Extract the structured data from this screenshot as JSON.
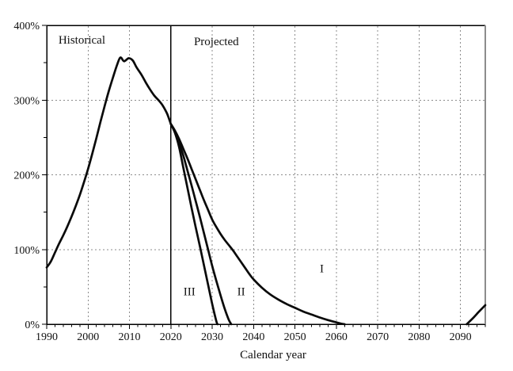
{
  "chart_data": {
    "type": "line",
    "title": "",
    "xlabel": "Calendar year",
    "ylabel": "",
    "y_tick_suffix": "%",
    "xlim": [
      1990,
      2096
    ],
    "ylim": [
      0,
      400
    ],
    "x_major_ticks": [
      1990,
      2000,
      2010,
      2020,
      2030,
      2040,
      2050,
      2060,
      2070,
      2080,
      2090
    ],
    "x_minor_tick_step": 2,
    "y_major_ticks": [
      0,
      100,
      200,
      300,
      400
    ],
    "y_minor_ticks": [
      50,
      150,
      250,
      350
    ],
    "gridlines": {
      "vertical_years": [
        2000,
        2010,
        2030,
        2040,
        2050,
        2060,
        2070,
        2080,
        2090
      ],
      "horizontal_values": [
        100,
        200,
        300
      ]
    },
    "divider": {
      "year": 2020,
      "style": "solid"
    },
    "region_labels": [
      {
        "text": "Historical",
        "x": 1998.5,
        "y": 381
      },
      {
        "text": "Projected",
        "x": 2031.0,
        "y": 379
      }
    ],
    "series_labels": [
      {
        "text": "I",
        "x": 2056.5,
        "y": 75
      },
      {
        "text": "II",
        "x": 2037.0,
        "y": 44
      },
      {
        "text": "III",
        "x": 2024.5,
        "y": 44
      }
    ],
    "colors": {
      "line": "#0a0a0a",
      "grid": "#8c8c8c",
      "axis": "#000000",
      "text": "#111111",
      "right_border": "#8c8c8c"
    },
    "legend": "none",
    "series": [
      {
        "name": "Historical",
        "points": [
          [
            1990,
            76
          ],
          [
            1991,
            84
          ],
          [
            1992,
            96
          ],
          [
            1993,
            108
          ],
          [
            1994,
            119
          ],
          [
            1995,
            131
          ],
          [
            1996,
            144
          ],
          [
            1997,
            158
          ],
          [
            1998,
            173
          ],
          [
            1999,
            190
          ],
          [
            2000,
            208
          ],
          [
            2001,
            228
          ],
          [
            2002,
            249
          ],
          [
            2003,
            271
          ],
          [
            2004,
            292
          ],
          [
            2005,
            312
          ],
          [
            2006,
            330
          ],
          [
            2007,
            347
          ],
          [
            2007.8,
            357
          ],
          [
            2008.7,
            352
          ],
          [
            2009.8,
            356
          ],
          [
            2010.8,
            353
          ],
          [
            2011.7,
            344
          ],
          [
            2013,
            333
          ],
          [
            2014,
            323
          ],
          [
            2015,
            314
          ],
          [
            2016,
            306
          ],
          [
            2017,
            300
          ],
          [
            2018,
            293
          ],
          [
            2019,
            283
          ],
          [
            2019.5,
            276
          ],
          [
            2020,
            268
          ]
        ]
      },
      {
        "name": "I",
        "points": [
          [
            2020,
            268
          ],
          [
            2021,
            259
          ],
          [
            2022,
            248
          ],
          [
            2023,
            235
          ],
          [
            2024,
            222
          ],
          [
            2025,
            208
          ],
          [
            2026,
            194
          ],
          [
            2027,
            180
          ],
          [
            2028,
            166
          ],
          [
            2029,
            153
          ],
          [
            2030,
            140
          ],
          [
            2031,
            130
          ],
          [
            2032,
            121
          ],
          [
            2033,
            113
          ],
          [
            2034,
            106
          ],
          [
            2035,
            99
          ],
          [
            2036,
            91
          ],
          [
            2037,
            83
          ],
          [
            2038,
            75
          ],
          [
            2039,
            67
          ],
          [
            2040,
            60
          ],
          [
            2042,
            49
          ],
          [
            2044,
            40
          ],
          [
            2046,
            33
          ],
          [
            2048,
            27
          ],
          [
            2050,
            22
          ],
          [
            2052,
            17
          ],
          [
            2054,
            13
          ],
          [
            2056,
            9
          ],
          [
            2058,
            5.5
          ],
          [
            2060,
            2.5
          ],
          [
            2061,
            1
          ],
          [
            2062,
            0
          ]
        ]
      },
      {
        "name": "I (rise at end of projection period)",
        "points": [
          [
            2091.5,
            0
          ],
          [
            2093,
            8
          ],
          [
            2094.5,
            17
          ],
          [
            2096,
            25.5
          ]
        ]
      },
      {
        "name": "II",
        "points": [
          [
            2020,
            268
          ],
          [
            2021,
            258
          ],
          [
            2022,
            243
          ],
          [
            2023,
            226
          ],
          [
            2024,
            206
          ],
          [
            2025,
            186
          ],
          [
            2026,
            165
          ],
          [
            2027,
            144
          ],
          [
            2028,
            122
          ],
          [
            2029,
            100
          ],
          [
            2030,
            78
          ],
          [
            2031,
            58
          ],
          [
            2032,
            39
          ],
          [
            2033,
            21
          ],
          [
            2034,
            6
          ],
          [
            2034.6,
            0
          ]
        ]
      },
      {
        "name": "III",
        "points": [
          [
            2020,
            268
          ],
          [
            2021,
            256
          ],
          [
            2022,
            237
          ],
          [
            2023,
            210
          ],
          [
            2024,
            183
          ],
          [
            2025,
            156
          ],
          [
            2026,
            130
          ],
          [
            2027,
            105
          ],
          [
            2028,
            79
          ],
          [
            2029,
            53
          ],
          [
            2030,
            27
          ],
          [
            2031,
            4
          ],
          [
            2031.3,
            0
          ]
        ]
      }
    ]
  }
}
